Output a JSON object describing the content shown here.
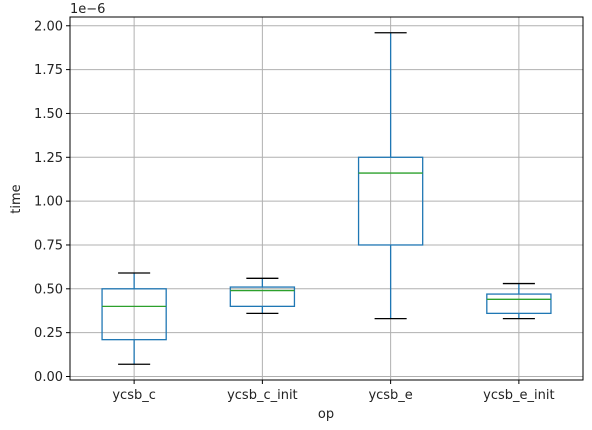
{
  "chart_data": {
    "type": "box",
    "xlabel": "op",
    "ylabel": "time",
    "offset_text": "1e−6",
    "ylim": [
      -0.02,
      2.05
    ],
    "y_ticks": [
      0.0,
      0.25,
      0.5,
      0.75,
      1.0,
      1.25,
      1.5,
      1.75,
      2.0
    ],
    "y_tick_labels": [
      "0.00",
      "0.25",
      "0.50",
      "0.75",
      "1.00",
      "1.25",
      "1.50",
      "1.75",
      "2.00"
    ],
    "grid": true,
    "categories": [
      "ycsb_c",
      "ycsb_c_init",
      "ycsb_e",
      "ycsb_e_init"
    ],
    "boxes": [
      {
        "label": "ycsb_c",
        "whisker_low": 0.07,
        "q1": 0.21,
        "median": 0.4,
        "q3": 0.5,
        "whisker_high": 0.59
      },
      {
        "label": "ycsb_c_init",
        "whisker_low": 0.36,
        "q1": 0.4,
        "median": 0.49,
        "q3": 0.51,
        "whisker_high": 0.56
      },
      {
        "label": "ycsb_e",
        "whisker_low": 0.33,
        "q1": 0.75,
        "median": 1.16,
        "q3": 1.25,
        "whisker_high": 1.96
      },
      {
        "label": "ycsb_e_init",
        "whisker_low": 0.33,
        "q1": 0.36,
        "median": 0.44,
        "q3": 0.47,
        "whisker_high": 0.53
      }
    ],
    "colors": {
      "box": "#1f77b4",
      "median": "#2ca02c",
      "whisker": "#1f77b4",
      "cap": "#000000",
      "grid": "#b0b0b0",
      "axes": "#000000"
    }
  }
}
